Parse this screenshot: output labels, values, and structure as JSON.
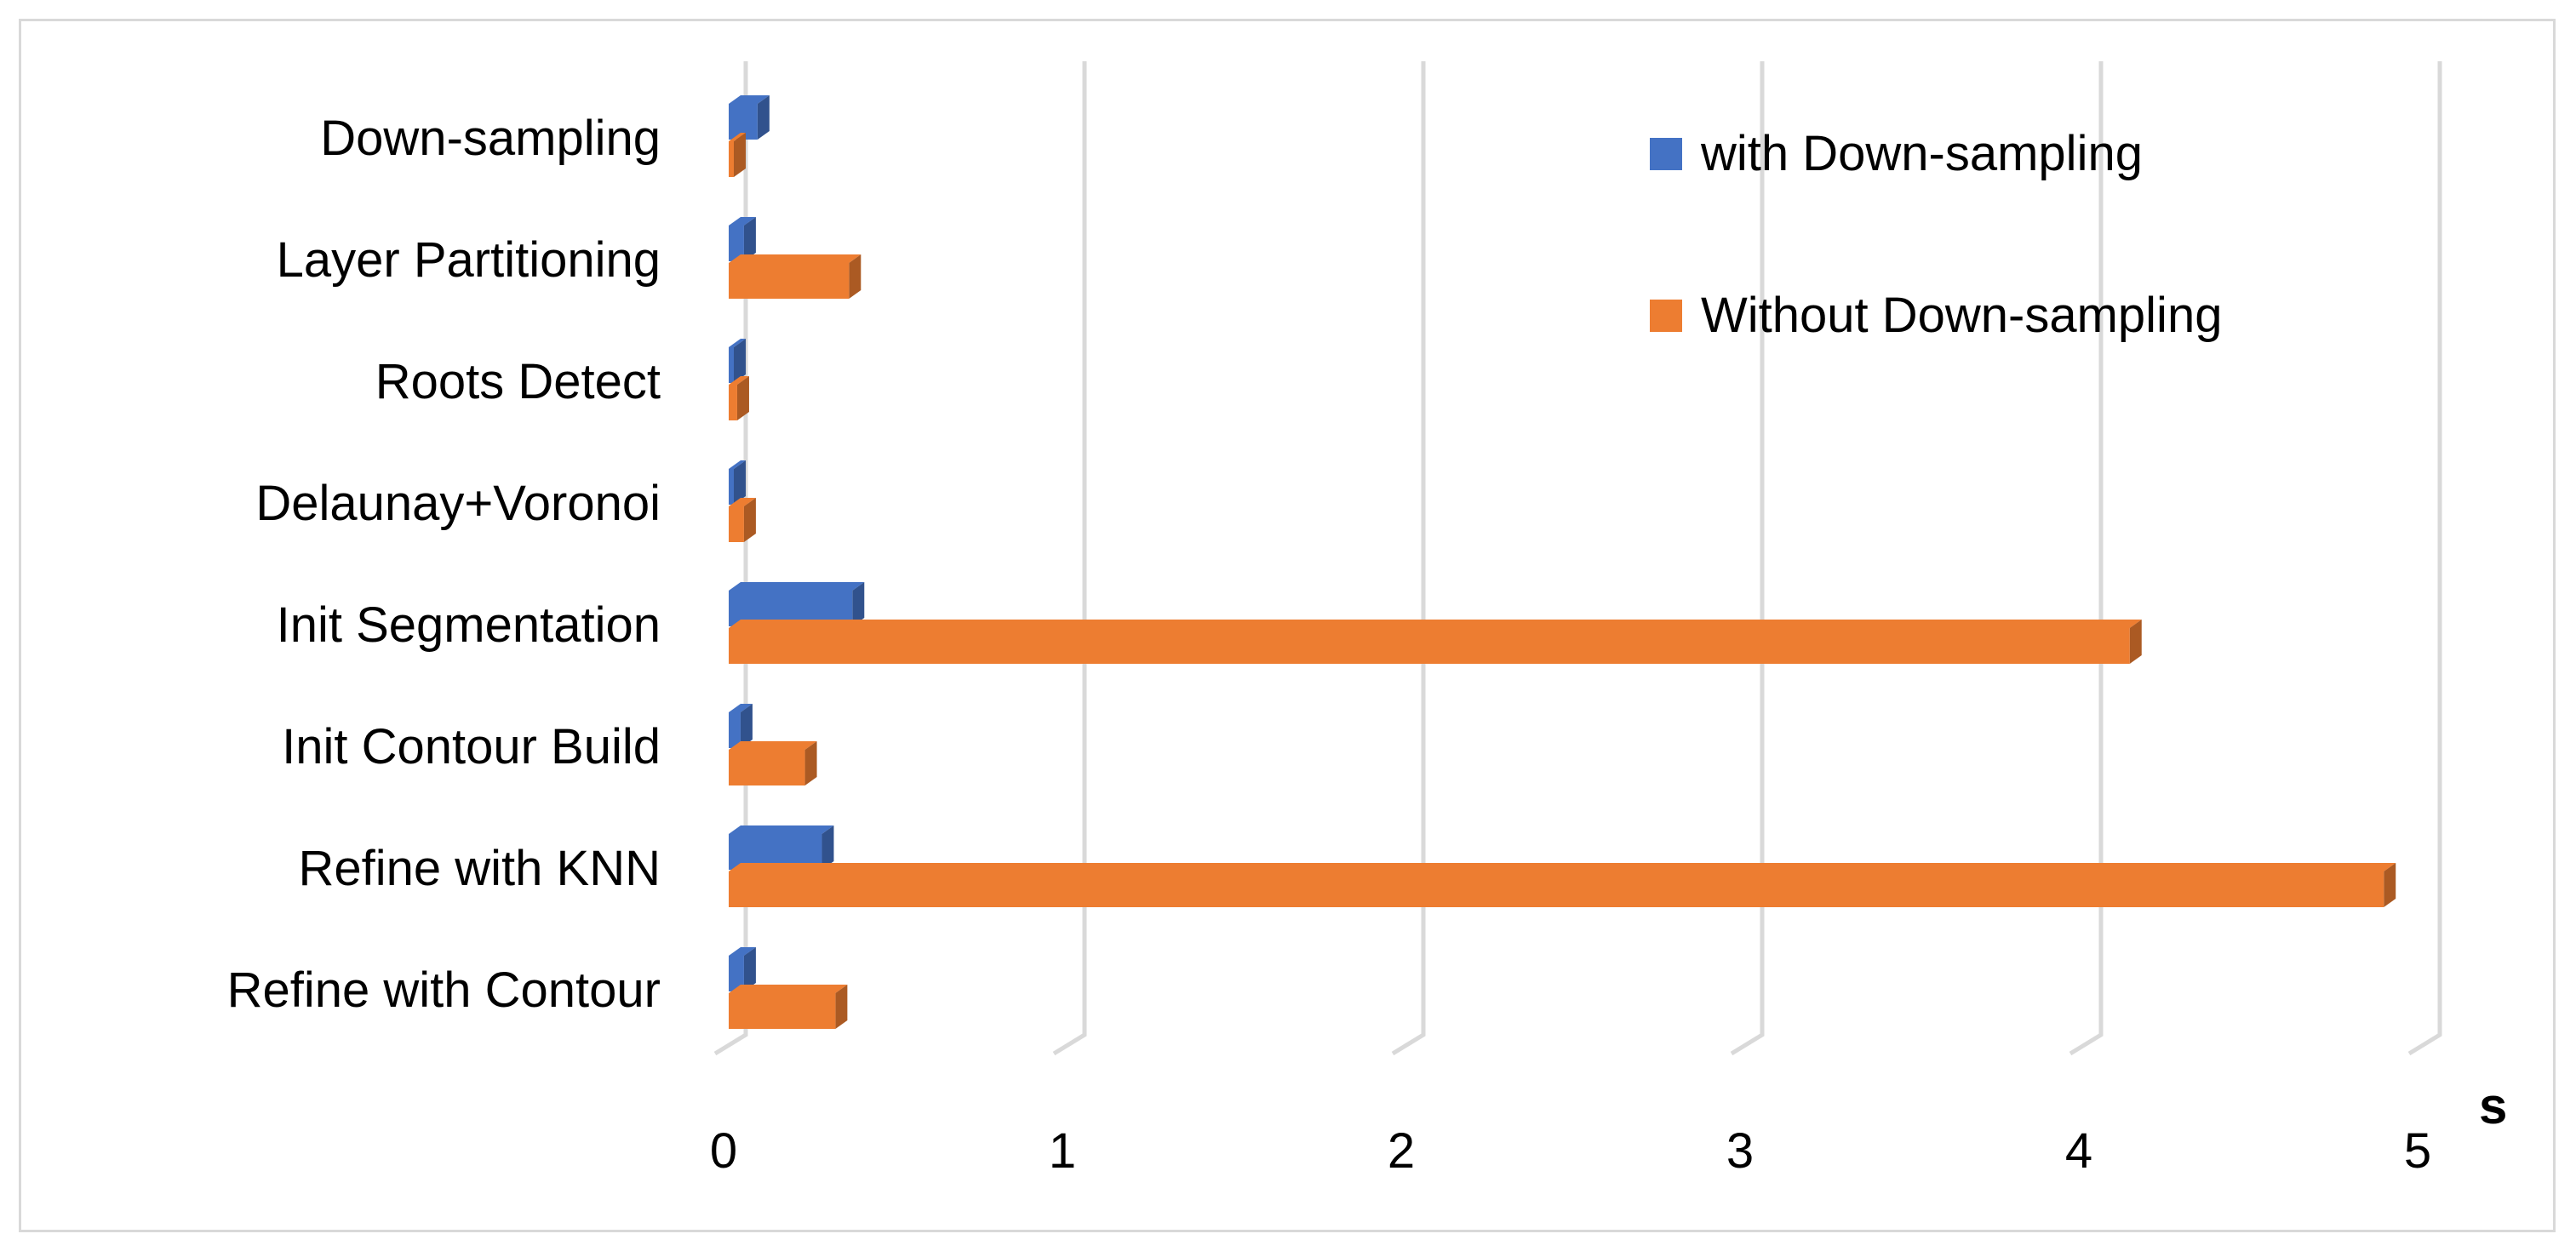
{
  "chart_data": {
    "type": "bar",
    "orientation": "horizontal",
    "style": "3d",
    "categories": [
      "Down-sampling",
      "Layer Partitioning",
      "Roots Detect",
      "Delaunay+Voronoi",
      "Init Segmentation",
      "Init Contour Build",
      "Refine with KNN",
      "Refine with Contour"
    ],
    "series": [
      {
        "name": "with Down-sampling",
        "color": "#4472c4",
        "values": [
          0.08,
          0.04,
          0.01,
          0.01,
          0.36,
          0.03,
          0.27,
          0.04
        ]
      },
      {
        "name": "Without Down-sampling",
        "color": "#ed7d31",
        "values": [
          0.01,
          0.35,
          0.02,
          0.04,
          4.13,
          0.22,
          4.88,
          0.31
        ]
      }
    ],
    "xticks": [
      "0",
      "1",
      "2",
      "3",
      "4",
      "5"
    ],
    "xlim": [
      0,
      5
    ],
    "xunit": "s",
    "grid": true,
    "legend_position": "top-right"
  }
}
